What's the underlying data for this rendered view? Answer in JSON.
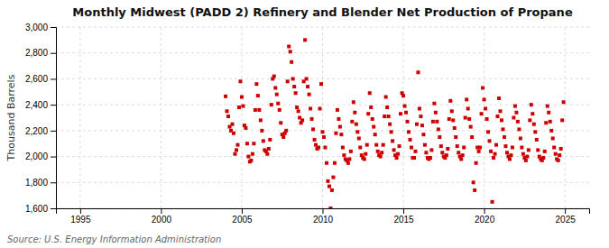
{
  "chart_data": {
    "type": "scatter",
    "title": "Monthly Midwest (PADD 2) Refinery and Blender Net Production of Propane",
    "ylabel": "Thousand Barrels",
    "annotations": [
      "Source: U.S. Energy Information Administration"
    ],
    "color": "#CC0000",
    "marker": "square",
    "grid": true,
    "xlim": [
      1993.5,
      2026.5
    ],
    "xticks": [
      1995,
      2000,
      2005,
      2010,
      2015,
      2020,
      2025
    ],
    "ylim": [
      1600,
      3000
    ],
    "yticks": [
      {
        "value": 1600,
        "label": "1,600"
      },
      {
        "value": 1800,
        "label": "1,800"
      },
      {
        "value": 2000,
        "label": "2,000"
      },
      {
        "value": 2200,
        "label": "2,200"
      },
      {
        "value": 2400,
        "label": "2,400"
      },
      {
        "value": 2600,
        "label": "2,600"
      },
      {
        "value": 2800,
        "label": "2,800"
      },
      {
        "value": 3000,
        "label": "3,000"
      }
    ],
    "x": [
      2004.0,
      2004.083,
      2004.167,
      2004.25,
      2004.333,
      2004.417,
      2004.5,
      2004.583,
      2004.667,
      2004.75,
      2004.833,
      2004.917,
      2005.0,
      2005.083,
      2005.167,
      2005.25,
      2005.333,
      2005.417,
      2005.5,
      2005.583,
      2005.667,
      2005.75,
      2005.833,
      2005.917,
      2006.0,
      2006.083,
      2006.167,
      2006.25,
      2006.333,
      2006.417,
      2006.5,
      2006.583,
      2006.667,
      2006.75,
      2006.833,
      2006.917,
      2007.0,
      2007.083,
      2007.167,
      2007.25,
      2007.333,
      2007.417,
      2007.5,
      2007.583,
      2007.667,
      2007.75,
      2007.833,
      2007.917,
      2008.0,
      2008.083,
      2008.167,
      2008.25,
      2008.333,
      2008.417,
      2008.5,
      2008.583,
      2008.667,
      2008.75,
      2008.833,
      2008.917,
      2009.0,
      2009.083,
      2009.167,
      2009.25,
      2009.333,
      2009.417,
      2009.5,
      2009.583,
      2009.667,
      2009.75,
      2009.833,
      2009.917,
      2010.0,
      2010.083,
      2010.167,
      2010.25,
      2010.333,
      2010.417,
      2010.5,
      2010.583,
      2010.667,
      2010.75,
      2010.833,
      2010.917,
      2011.0,
      2011.083,
      2011.167,
      2011.25,
      2011.333,
      2011.417,
      2011.5,
      2011.583,
      2011.667,
      2011.75,
      2011.833,
      2011.917,
      2012.0,
      2012.083,
      2012.167,
      2012.25,
      2012.333,
      2012.417,
      2012.5,
      2012.583,
      2012.667,
      2012.75,
      2012.833,
      2012.917,
      2013.0,
      2013.083,
      2013.167,
      2013.25,
      2013.333,
      2013.417,
      2013.5,
      2013.583,
      2013.667,
      2013.75,
      2013.833,
      2013.917,
      2014.0,
      2014.083,
      2014.167,
      2014.25,
      2014.333,
      2014.417,
      2014.5,
      2014.583,
      2014.667,
      2014.75,
      2014.833,
      2014.917,
      2015.0,
      2015.083,
      2015.167,
      2015.25,
      2015.333,
      2015.417,
      2015.5,
      2015.583,
      2015.667,
      2015.75,
      2015.833,
      2015.917,
      2016.0,
      2016.083,
      2016.167,
      2016.25,
      2016.333,
      2016.417,
      2016.5,
      2016.583,
      2016.667,
      2016.75,
      2016.833,
      2016.917,
      2017.0,
      2017.083,
      2017.167,
      2017.25,
      2017.333,
      2017.417,
      2017.5,
      2017.583,
      2017.667,
      2017.75,
      2017.833,
      2017.917,
      2018.0,
      2018.083,
      2018.167,
      2018.25,
      2018.333,
      2018.417,
      2018.5,
      2018.583,
      2018.667,
      2018.75,
      2018.833,
      2018.917,
      2019.0,
      2019.083,
      2019.167,
      2019.25,
      2019.333,
      2019.417,
      2019.5,
      2019.583,
      2019.667,
      2019.75,
      2019.833,
      2019.917,
      2020.0,
      2020.083,
      2020.167,
      2020.25,
      2020.333,
      2020.417,
      2020.5,
      2020.583,
      2020.667,
      2020.75,
      2020.833,
      2020.917,
      2021.0,
      2021.083,
      2021.167,
      2021.25,
      2021.333,
      2021.417,
      2021.5,
      2021.583,
      2021.667,
      2021.75,
      2021.833,
      2021.917,
      2022.0,
      2022.083,
      2022.167,
      2022.25,
      2022.333,
      2022.417,
      2022.5,
      2022.583,
      2022.667,
      2022.75,
      2022.833,
      2022.917,
      2023.0,
      2023.083,
      2023.167,
      2023.25,
      2023.333,
      2023.417,
      2023.5,
      2023.583,
      2023.667,
      2023.75,
      2023.833,
      2023.917,
      2024.0,
      2024.083,
      2024.167,
      2024.25,
      2024.333,
      2024.417,
      2024.5,
      2024.583,
      2024.667,
      2024.75,
      2024.833,
      2024.917
    ],
    "values": [
      2465,
      2350,
      2310,
      2230,
      2200,
      2250,
      2180,
      2020,
      2050,
      2090,
      2380,
      2580,
      2460,
      2390,
      2240,
      2220,
      2100,
      2000,
      1960,
      1970,
      2020,
      2100,
      2360,
      2560,
      2470,
      2360,
      2280,
      2200,
      2120,
      2050,
      2040,
      2020,
      2060,
      2130,
      2400,
      2600,
      2620,
      2530,
      2480,
      2410,
      2360,
      2260,
      2170,
      2150,
      2180,
      2200,
      2580,
      2850,
      2810,
      2730,
      2600,
      2540,
      2490,
      2380,
      2350,
      2300,
      2260,
      2280,
      2580,
      2900,
      2600,
      2540,
      2480,
      2370,
      2290,
      2210,
      2130,
      2090,
      2060,
      2070,
      2370,
      2560,
      2190,
      2150,
      2070,
      1950,
      1810,
      1770,
      1600,
      1740,
      1840,
      1950,
      2180,
      2360,
      2290,
      2230,
      2170,
      2070,
      2010,
      1980,
      1970,
      1950,
      1980,
      2040,
      2270,
      2420,
      2340,
      2250,
      2190,
      2140,
      2070,
      2010,
      1990,
      1980,
      2020,
      2090,
      2330,
      2490,
      2380,
      2290,
      2230,
      2170,
      2090,
      2040,
      2010,
      2000,
      2030,
      2090,
      2310,
      2460,
      2380,
      2310,
      2250,
      2190,
      2120,
      2050,
      2010,
      1990,
      2020,
      2080,
      2330,
      2490,
      2470,
      2390,
      2340,
      2270,
      2190,
      2130,
      2070,
      1990,
      1990,
      2040,
      2250,
      2650,
      2370,
      2310,
      2240,
      2170,
      2090,
      2030,
      1990,
      1980,
      1990,
      2050,
      2270,
      2410,
      2340,
      2270,
      2210,
      2150,
      2080,
      2030,
      2000,
      1990,
      2010,
      2060,
      2290,
      2430,
      2350,
      2280,
      2220,
      2150,
      2080,
      2030,
      2000,
      1980,
      2010,
      2070,
      2300,
      2440,
      2370,
      2290,
      2230,
      2150,
      1800,
      1740,
      1950,
      2070,
      2040,
      2070,
      2330,
      2530,
      2440,
      2370,
      2290,
      2190,
      2120,
      2040,
      1650,
      1990,
      2020,
      2090,
      2310,
      2450,
      2350,
      2280,
      2210,
      2150,
      2080,
      2030,
      2000,
      1980,
      2010,
      2070,
      2300,
      2390,
      2340,
      2270,
      2210,
      2140,
      2070,
      2020,
      1990,
      1970,
      2000,
      2050,
      2280,
      2400,
      2330,
      2250,
      2190,
      2130,
      2050,
      2000,
      1980,
      1970,
      1990,
      2040,
      2260,
      2390,
      2340,
      2270,
      2200,
      2140,
      2070,
      2020,
      1980,
      1970,
      2010,
      2060,
      2280,
      2420
    ]
  }
}
